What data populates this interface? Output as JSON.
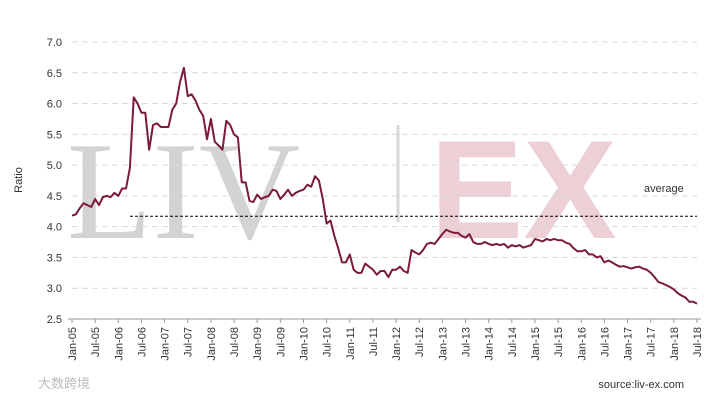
{
  "chart_data": {
    "type": "line",
    "y_label": "Ratio",
    "watermark": [
      "LIV",
      "EX"
    ],
    "source": "source:liv-ex.com",
    "logo": "大数跨境",
    "average": {
      "value": 4.17,
      "label": "average"
    },
    "categories": [
      "Jan-05",
      null,
      null,
      null,
      null,
      null,
      "Jul-05",
      null,
      null,
      null,
      null,
      null,
      "Jan-06",
      null,
      null,
      null,
      null,
      null,
      "Jul-06",
      null,
      null,
      null,
      null,
      null,
      "Jan-07",
      null,
      null,
      null,
      null,
      null,
      "Jul-07",
      null,
      null,
      null,
      null,
      null,
      "Jan-08",
      null,
      null,
      null,
      null,
      null,
      "Jul-08",
      null,
      null,
      null,
      null,
      null,
      "Jan-09",
      null,
      null,
      null,
      null,
      null,
      "Jul-09",
      null,
      null,
      null,
      null,
      null,
      "Jan-10",
      null,
      null,
      null,
      null,
      null,
      "Jul-10",
      null,
      null,
      null,
      null,
      null,
      "Jan-11",
      null,
      null,
      null,
      null,
      null,
      "Jul-11",
      null,
      null,
      null,
      null,
      null,
      "Jan-12",
      null,
      null,
      null,
      null,
      null,
      "Jul-12",
      null,
      null,
      null,
      null,
      null,
      "Jan-13",
      null,
      null,
      null,
      null,
      null,
      "Jul-13",
      null,
      null,
      null,
      null,
      null,
      "Jan-14",
      null,
      null,
      null,
      null,
      null,
      "Jul-14",
      null,
      null,
      null,
      null,
      null,
      "Jan-15",
      null,
      null,
      null,
      null,
      null,
      "Jul-15",
      null,
      null,
      null,
      null,
      null,
      "Jan-16",
      null,
      null,
      null,
      null,
      null,
      "Jul-16",
      null,
      null,
      null,
      null,
      null,
      "Jan-17",
      null,
      null,
      null,
      null,
      null,
      "Jul-17",
      null,
      null,
      null,
      null,
      null,
      "Jan-18",
      null,
      null,
      null,
      null,
      null,
      "Jul-18"
    ],
    "series": [
      {
        "name": "Ratio",
        "color": "#7b1a3a",
        "values": [
          4.18,
          4.2,
          4.3,
          4.38,
          4.35,
          4.32,
          4.45,
          4.35,
          4.48,
          4.5,
          4.48,
          4.55,
          4.5,
          4.62,
          4.62,
          4.95,
          6.1,
          6.0,
          5.85,
          5.85,
          5.25,
          5.65,
          5.68,
          5.62,
          5.62,
          5.62,
          5.9,
          6.0,
          6.35,
          6.58,
          6.12,
          6.15,
          6.05,
          5.9,
          5.8,
          5.42,
          5.75,
          5.38,
          5.32,
          5.25,
          5.72,
          5.65,
          5.5,
          5.45,
          4.72,
          4.72,
          4.42,
          4.4,
          4.52,
          4.45,
          4.48,
          4.5,
          4.6,
          4.58,
          4.45,
          4.52,
          4.6,
          4.5,
          4.55,
          4.58,
          4.6,
          4.68,
          4.65,
          4.82,
          4.75,
          4.45,
          4.05,
          4.1,
          3.85,
          3.65,
          3.42,
          3.42,
          3.55,
          3.3,
          3.25,
          3.25,
          3.4,
          3.35,
          3.3,
          3.22,
          3.28,
          3.28,
          3.18,
          3.3,
          3.3,
          3.35,
          3.28,
          3.25,
          3.62,
          3.58,
          3.55,
          3.62,
          3.72,
          3.74,
          3.72,
          3.8,
          3.88,
          3.95,
          3.92,
          3.9,
          3.9,
          3.85,
          3.82,
          3.88,
          3.75,
          3.72,
          3.72,
          3.75,
          3.72,
          3.7,
          3.72,
          3.7,
          3.72,
          3.66,
          3.7,
          3.68,
          3.7,
          3.66,
          3.68,
          3.7,
          3.8,
          3.78,
          3.76,
          3.8,
          3.78,
          3.8,
          3.78,
          3.78,
          3.74,
          3.72,
          3.65,
          3.6,
          3.6,
          3.62,
          3.55,
          3.55,
          3.5,
          3.52,
          3.42,
          3.45,
          3.42,
          3.38,
          3.35,
          3.36,
          3.34,
          3.32,
          3.34,
          3.35,
          3.32,
          3.3,
          3.25,
          3.18,
          3.1,
          3.08,
          3.05,
          3.02,
          2.98,
          2.92,
          2.88,
          2.85,
          2.78,
          2.78,
          2.75
        ]
      }
    ],
    "ylim": [
      2.5,
      7.0
    ],
    "yticks": [
      2.5,
      {
        "value": 3,
        "label": "3.0"
      },
      3.5,
      {
        "value": 4,
        "label": "4.0"
      },
      4.5,
      {
        "value": 5,
        "label": "5.0"
      },
      5.5,
      {
        "value": 6,
        "label": "6.0"
      },
      6.5,
      {
        "value": 7,
        "label": "7.0"
      }
    ],
    "grid": true
  }
}
